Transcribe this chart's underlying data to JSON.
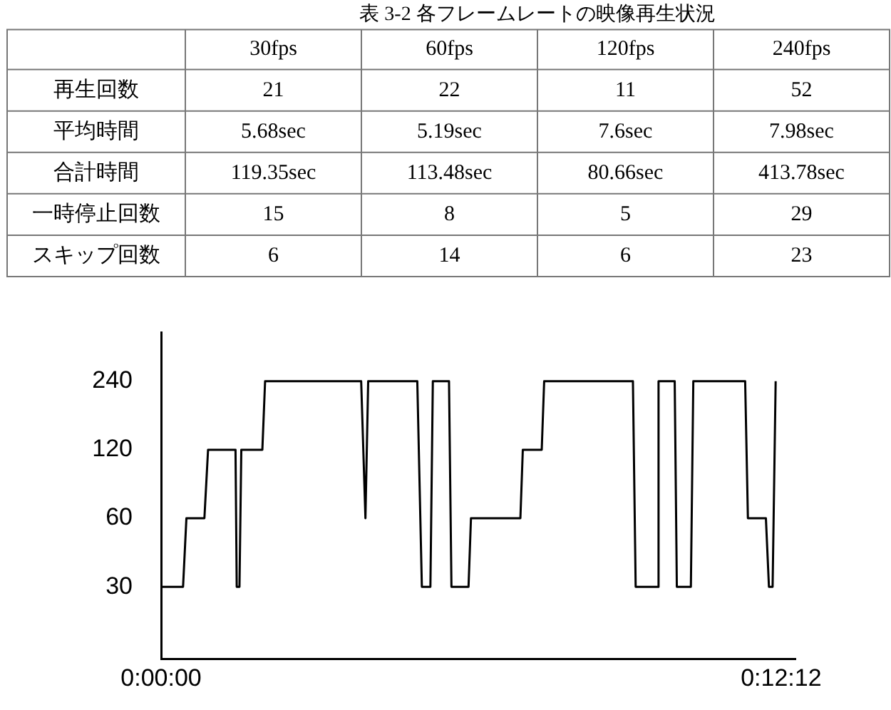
{
  "chart_data": [
    {
      "type": "other",
      "title": "表 3-2 各フレームレートの映像再生状況",
      "categories": [
        "30fps",
        "60fps",
        "120fps",
        "240fps"
      ],
      "y_categories": [
        "再生回数",
        "平均時間",
        "合計時間",
        "一時停止回数",
        "スキップ回数"
      ],
      "cell_labels": [
        [
          "21",
          "22",
          "11",
          "52"
        ],
        [
          "5.68sec",
          "5.19sec",
          "7.6sec",
          "7.98sec"
        ],
        [
          "119.35sec",
          "113.48sec",
          "80.66sec",
          "413.78sec"
        ],
        [
          "15",
          "8",
          "5",
          "29"
        ],
        [
          "6",
          "14",
          "6",
          "23"
        ]
      ]
    },
    {
      "type": "line",
      "color": "#000000",
      "log": true,
      "grid": false,
      "legend": false,
      "marker": "none",
      "line_style": "solid",
      "xlim": [
        0,
        0.208
      ],
      "xticks": [
        {
          "value": 0,
          "label": "0:00:00"
        },
        {
          "value": 0.2033,
          "label": "0:12:12"
        }
      ],
      "ylim": [
        14.5,
        394
      ],
      "yticks": [
        30,
        60,
        120,
        240
      ],
      "x": [
        0,
        0.0072,
        0.0083,
        0.0142,
        0.0154,
        0.0244,
        0.0248,
        0.0257,
        0.0263,
        0.0332,
        0.0341,
        0.0656,
        0.067,
        0.0679,
        0.084,
        0.0855,
        0.0883,
        0.0891,
        0.0944,
        0.0952,
        0.1008,
        0.1016,
        0.1178,
        0.1186,
        0.1248,
        0.1256,
        0.1547,
        0.1556,
        0.1627,
        0.1631,
        0.1684,
        0.1691,
        0.1737,
        0.1745,
        0.1915,
        0.1924,
        0.1983,
        0.1993,
        0.2005,
        0.2015
      ],
      "values": [
        30,
        30,
        60,
        60,
        120,
        120,
        30,
        30,
        120,
        120,
        240,
        240,
        60,
        240,
        240,
        30,
        30,
        240,
        240,
        30,
        30,
        60,
        60,
        120,
        120,
        240,
        240,
        30,
        30,
        240,
        240,
        30,
        30,
        240,
        240,
        60,
        60,
        30,
        30,
        240
      ]
    }
  ]
}
